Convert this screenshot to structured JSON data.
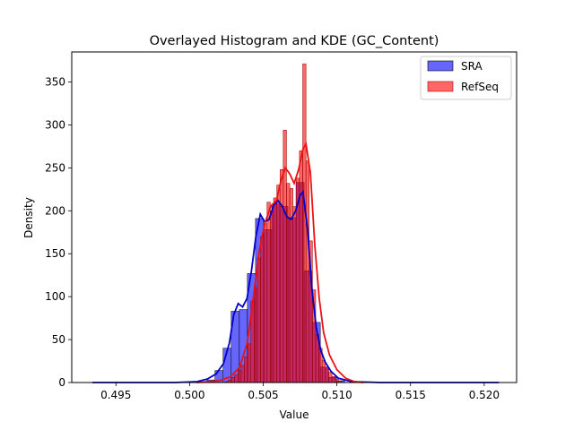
{
  "chart_data": {
    "type": "histogram",
    "title": "Overlayed Histogram and KDE (GC_Content)",
    "xlabel": "Value",
    "ylabel": "Density",
    "xlim": [
      0.492,
      0.5222
    ],
    "ylim": [
      0,
      385
    ],
    "xticks": [
      0.495,
      0.5,
      0.505,
      0.51,
      0.515,
      0.52
    ],
    "xtick_labels": [
      "0.495",
      "0.500",
      "0.505",
      "0.510",
      "0.515",
      "0.520"
    ],
    "yticks": [
      0,
      50,
      100,
      150,
      200,
      250,
      300,
      350
    ],
    "ytick_labels": [
      "0",
      "50",
      "100",
      "150",
      "200",
      "250",
      "300",
      "350"
    ],
    "grid": false,
    "legend": {
      "position": "top-right",
      "entries": [
        {
          "name": "SRA",
          "color": "#0000ff"
        },
        {
          "name": "RefSeq",
          "color": "#ff0000"
        }
      ]
    },
    "series": [
      {
        "name": "SRA",
        "kind": "histogram+kde",
        "bar_color": "#0000ff",
        "bar_alpha": 0.6,
        "line_color": "#0000cc",
        "bin_width": 0.00055,
        "bins": [
          {
            "x": 0.50145,
            "y": 3
          },
          {
            "x": 0.502,
            "y": 14
          },
          {
            "x": 0.50255,
            "y": 40
          },
          {
            "x": 0.5031,
            "y": 83
          },
          {
            "x": 0.50365,
            "y": 85
          },
          {
            "x": 0.5042,
            "y": 127
          },
          {
            "x": 0.50475,
            "y": 191
          },
          {
            "x": 0.5053,
            "y": 178
          },
          {
            "x": 0.50585,
            "y": 208
          },
          {
            "x": 0.5064,
            "y": 205
          },
          {
            "x": 0.50695,
            "y": 192
          },
          {
            "x": 0.5075,
            "y": 233
          },
          {
            "x": 0.50805,
            "y": 130
          },
          {
            "x": 0.5086,
            "y": 70
          },
          {
            "x": 0.50915,
            "y": 18
          },
          {
            "x": 0.5097,
            "y": 6
          },
          {
            "x": 0.51025,
            "y": 2
          }
        ],
        "kde": [
          {
            "x": 0.4934,
            "y": 0
          },
          {
            "x": 0.499,
            "y": 0
          },
          {
            "x": 0.5005,
            "y": 1
          },
          {
            "x": 0.5012,
            "y": 4
          },
          {
            "x": 0.5018,
            "y": 10
          },
          {
            "x": 0.5023,
            "y": 22
          },
          {
            "x": 0.5027,
            "y": 46
          },
          {
            "x": 0.503,
            "y": 79
          },
          {
            "x": 0.5033,
            "y": 92
          },
          {
            "x": 0.5036,
            "y": 88
          },
          {
            "x": 0.5039,
            "y": 98
          },
          {
            "x": 0.5042,
            "y": 130
          },
          {
            "x": 0.5045,
            "y": 170
          },
          {
            "x": 0.5048,
            "y": 196
          },
          {
            "x": 0.5051,
            "y": 187
          },
          {
            "x": 0.5054,
            "y": 190
          },
          {
            "x": 0.5057,
            "y": 206
          },
          {
            "x": 0.506,
            "y": 212
          },
          {
            "x": 0.5063,
            "y": 205
          },
          {
            "x": 0.5066,
            "y": 193
          },
          {
            "x": 0.5069,
            "y": 190
          },
          {
            "x": 0.5072,
            "y": 200
          },
          {
            "x": 0.5075,
            "y": 218
          },
          {
            "x": 0.5077,
            "y": 222
          },
          {
            "x": 0.508,
            "y": 180
          },
          {
            "x": 0.5083,
            "y": 110
          },
          {
            "x": 0.5086,
            "y": 64
          },
          {
            "x": 0.5089,
            "y": 38
          },
          {
            "x": 0.5092,
            "y": 24
          },
          {
            "x": 0.5096,
            "y": 13
          },
          {
            "x": 0.5101,
            "y": 5
          },
          {
            "x": 0.511,
            "y": 1
          },
          {
            "x": 0.513,
            "y": 0
          },
          {
            "x": 0.521,
            "y": 0
          }
        ]
      },
      {
        "name": "RefSeq",
        "kind": "histogram+kde",
        "bar_color": "#ff0000",
        "bar_alpha": 0.6,
        "line_color": "#ee1111",
        "bin_width": 0.00022,
        "bins": [
          {
            "x": 0.50251,
            "y": 1
          },
          {
            "x": 0.50273,
            "y": 3
          },
          {
            "x": 0.50295,
            "y": 6
          },
          {
            "x": 0.50317,
            "y": 9
          },
          {
            "x": 0.50339,
            "y": 14
          },
          {
            "x": 0.50361,
            "y": 20
          },
          {
            "x": 0.50383,
            "y": 30
          },
          {
            "x": 0.50405,
            "y": 45
          },
          {
            "x": 0.50427,
            "y": 95
          },
          {
            "x": 0.50449,
            "y": 110
          },
          {
            "x": 0.50471,
            "y": 145
          },
          {
            "x": 0.50493,
            "y": 170
          },
          {
            "x": 0.50515,
            "y": 185
          },
          {
            "x": 0.50537,
            "y": 210
          },
          {
            "x": 0.50559,
            "y": 200
          },
          {
            "x": 0.50581,
            "y": 215
          },
          {
            "x": 0.50603,
            "y": 230
          },
          {
            "x": 0.50625,
            "y": 248
          },
          {
            "x": 0.50647,
            "y": 294
          },
          {
            "x": 0.50669,
            "y": 232
          },
          {
            "x": 0.50691,
            "y": 226
          },
          {
            "x": 0.50713,
            "y": 205
          },
          {
            "x": 0.50735,
            "y": 238
          },
          {
            "x": 0.50757,
            "y": 270
          },
          {
            "x": 0.50779,
            "y": 371
          },
          {
            "x": 0.50801,
            "y": 258
          },
          {
            "x": 0.50823,
            "y": 165
          },
          {
            "x": 0.50845,
            "y": 108
          },
          {
            "x": 0.50867,
            "y": 56
          },
          {
            "x": 0.50889,
            "y": 40
          },
          {
            "x": 0.50911,
            "y": 26
          },
          {
            "x": 0.50933,
            "y": 18
          },
          {
            "x": 0.50955,
            "y": 12
          },
          {
            "x": 0.50977,
            "y": 7
          },
          {
            "x": 0.50999,
            "y": 4
          },
          {
            "x": 0.51021,
            "y": 2
          }
        ],
        "kde": [
          {
            "x": 0.5005,
            "y": 0
          },
          {
            "x": 0.502,
            "y": 2
          },
          {
            "x": 0.5028,
            "y": 7
          },
          {
            "x": 0.5034,
            "y": 18
          },
          {
            "x": 0.5039,
            "y": 45
          },
          {
            "x": 0.5043,
            "y": 95
          },
          {
            "x": 0.5047,
            "y": 150
          },
          {
            "x": 0.5051,
            "y": 185
          },
          {
            "x": 0.5055,
            "y": 205
          },
          {
            "x": 0.5059,
            "y": 212
          },
          {
            "x": 0.5062,
            "y": 235
          },
          {
            "x": 0.5065,
            "y": 250
          },
          {
            "x": 0.5068,
            "y": 243
          },
          {
            "x": 0.5071,
            "y": 232
          },
          {
            "x": 0.5074,
            "y": 248
          },
          {
            "x": 0.5077,
            "y": 272
          },
          {
            "x": 0.5079,
            "y": 278
          },
          {
            "x": 0.5082,
            "y": 245
          },
          {
            "x": 0.5085,
            "y": 160
          },
          {
            "x": 0.5088,
            "y": 98
          },
          {
            "x": 0.5091,
            "y": 58
          },
          {
            "x": 0.5095,
            "y": 32
          },
          {
            "x": 0.51,
            "y": 15
          },
          {
            "x": 0.5106,
            "y": 5
          },
          {
            "x": 0.5112,
            "y": 1
          },
          {
            "x": 0.5118,
            "y": 0
          }
        ]
      }
    ]
  }
}
